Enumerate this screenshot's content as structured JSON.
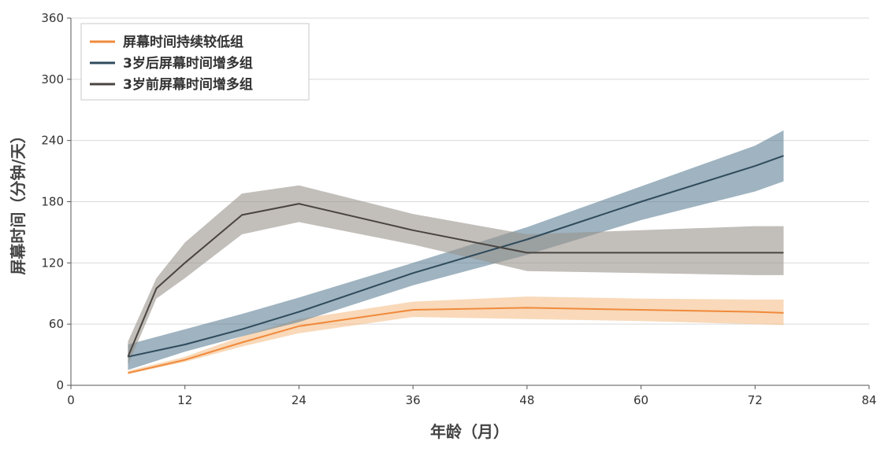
{
  "chart_data": {
    "type": "line",
    "xlabel": "年龄（月）",
    "ylabel": "屏幕时间（分钟/天）",
    "xlim": [
      0,
      84
    ],
    "ylim": [
      0,
      360
    ],
    "x_ticks": [
      0,
      12,
      24,
      36,
      48,
      60,
      72,
      84
    ],
    "y_ticks": [
      0,
      60,
      120,
      180,
      240,
      300,
      360
    ],
    "grid": "horizontal",
    "legend_position": "top-left",
    "series": [
      {
        "name": "屏幕时间持续较低组",
        "color": "#F08A3C",
        "band_color": "#F5C08A",
        "x": [
          6,
          12,
          18,
          24,
          36,
          48,
          60,
          72,
          75
        ],
        "y": [
          12,
          25,
          42,
          58,
          74,
          76,
          74,
          72,
          71
        ],
        "lower": [
          11,
          23,
          38,
          51,
          67,
          65,
          63,
          60,
          59
        ],
        "upper": [
          14,
          28,
          48,
          65,
          82,
          87,
          85,
          84,
          84
        ]
      },
      {
        "name": "3岁后屏幕时间增多组",
        "color": "#2F4B5C",
        "band_color": "#5F8196",
        "x": [
          6,
          12,
          18,
          24,
          36,
          48,
          60,
          72,
          75
        ],
        "y": [
          28,
          40,
          55,
          72,
          110,
          143,
          180,
          215,
          225
        ],
        "lower": [
          15,
          33,
          48,
          62,
          98,
          128,
          162,
          190,
          200
        ],
        "upper": [
          40,
          55,
          70,
          86,
          120,
          155,
          195,
          235,
          250
        ]
      },
      {
        "name": "3岁前屏幕时间增多组",
        "color": "#4A4440",
        "band_color": "#9A928C",
        "x": [
          6,
          9,
          12,
          18,
          24,
          36,
          48,
          60,
          72,
          75
        ],
        "y": [
          28,
          95,
          120,
          167,
          178,
          152,
          130,
          130,
          130,
          130
        ],
        "lower": [
          20,
          85,
          105,
          148,
          160,
          138,
          112,
          110,
          108,
          108
        ],
        "upper": [
          43,
          105,
          140,
          188,
          196,
          168,
          148,
          152,
          156,
          156
        ]
      }
    ]
  }
}
